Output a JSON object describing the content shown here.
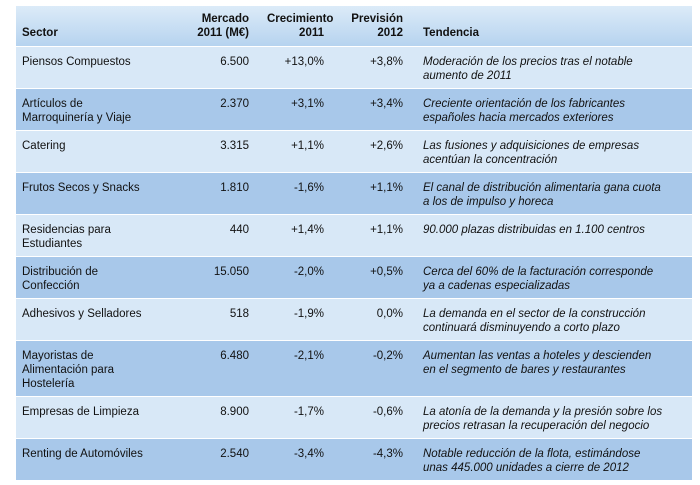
{
  "headers": {
    "sector": "Sector",
    "mercado_l1": "Mercado",
    "mercado_l2": "2011 (M€)",
    "crec_l1": "Crecimiento",
    "crec_l2": "2011",
    "prev_l1": "Previsión",
    "prev_l2": "2012",
    "tendencia": "Tendencia"
  },
  "rows": [
    {
      "sector": [
        "Piensos Compuestos"
      ],
      "mercado": "6.500",
      "crecimiento": "+13,0%",
      "prevision": "+3,8%",
      "tendencia": [
        "Moderación de los precios tras el notable",
        "aumento de 2011"
      ]
    },
    {
      "sector": [
        "Artículos de",
        "Marroquinería y Viaje"
      ],
      "mercado": "2.370",
      "crecimiento": "+3,1%",
      "prevision": "+3,4%",
      "tendencia": [
        "Creciente orientación de los fabricantes",
        "españoles hacia mercados exteriores"
      ]
    },
    {
      "sector": [
        "Catering"
      ],
      "mercado": "3.315",
      "crecimiento": "+1,1%",
      "prevision": "+2,6%",
      "tendencia": [
        "Las fusiones y adquisiciones de empresas",
        "acentúan la concentración"
      ]
    },
    {
      "sector": [
        "Frutos Secos y Snacks"
      ],
      "mercado": "1.810",
      "crecimiento": "-1,6%",
      "prevision": "+1,1%",
      "tendencia": [
        "El canal de distribución alimentaria gana cuota",
        "a los de impulso y horeca"
      ]
    },
    {
      "sector": [
        "Residencias para",
        "Estudiantes"
      ],
      "mercado": "440",
      "crecimiento": "+1,4%",
      "prevision": "+1,1%",
      "tendencia": [
        "90.000 plazas distribuidas en 1.100 centros"
      ]
    },
    {
      "sector": [
        "Distribución de",
        "Confección"
      ],
      "mercado": "15.050",
      "crecimiento": "-2,0%",
      "prevision": "+0,5%",
      "tendencia": [
        "Cerca del 60% de la facturación corresponde",
        "ya a cadenas especializadas"
      ]
    },
    {
      "sector": [
        "Adhesivos y Selladores"
      ],
      "mercado": "518",
      "crecimiento": "-1,9%",
      "prevision": "0,0%",
      "tendencia": [
        "La demanda en el sector de la construcción",
        "continuará disminuyendo a corto plazo"
      ]
    },
    {
      "sector": [
        "Mayoristas de",
        "Alimentación para",
        "Hostelería"
      ],
      "mercado": "6.480",
      "crecimiento": "-2,1%",
      "prevision": "-0,2%",
      "tendencia": [
        "Aumentan las ventas a hoteles y descienden",
        "en el segmento de bares y restaurantes"
      ]
    },
    {
      "sector": [
        "Empresas de Limpieza"
      ],
      "mercado": "8.900",
      "crecimiento": "-1,7%",
      "prevision": "-0,6%",
      "tendencia": [
        "La atonía de la demanda y la presión sobre los",
        "precios retrasan la recuperación del negocio"
      ]
    },
    {
      "sector": [
        "Renting de Automóviles"
      ],
      "mercado": "2.540",
      "crecimiento": "-3,4%",
      "prevision": "-4,3%",
      "tendencia": [
        "Notable reducción de la flota, estimándose",
        "unas 445.000 unidades a cierre de 2012"
      ]
    }
  ]
}
